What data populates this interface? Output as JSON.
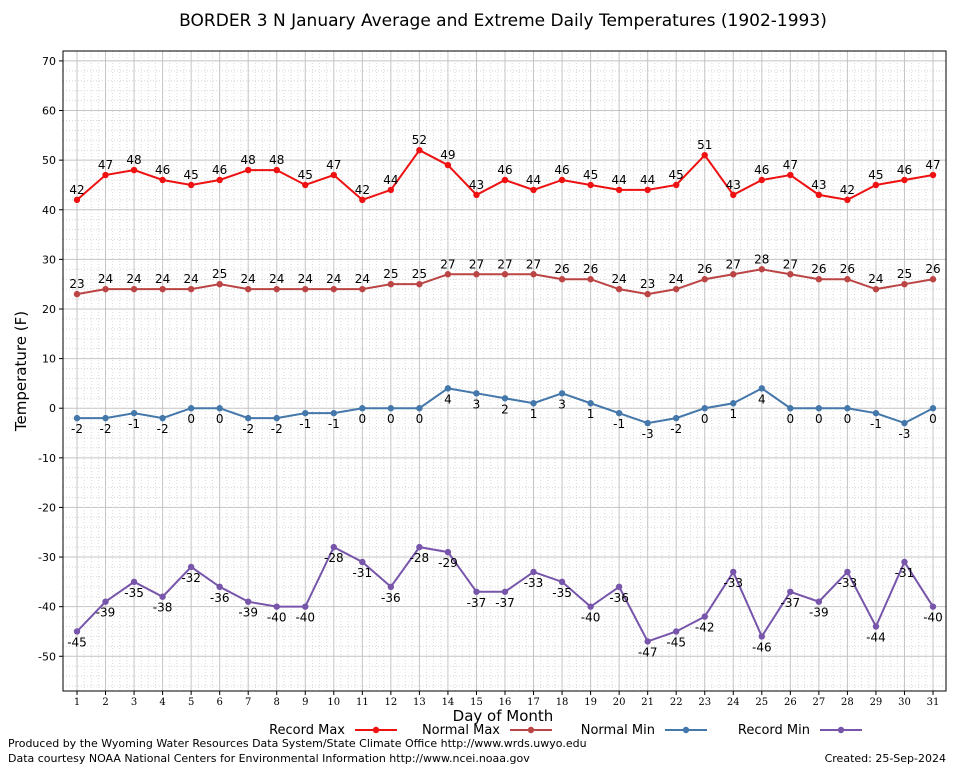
{
  "chart_data": {
    "type": "line",
    "title": "BORDER 3 N January Average and Extreme Daily Temperatures (1902-1993)",
    "xlabel": "Day of Month",
    "ylabel": "Temperature (F)",
    "ylim": [
      -57,
      72
    ],
    "yticks": [
      -50,
      -40,
      -30,
      -20,
      -10,
      0,
      10,
      20,
      30,
      40,
      50,
      60,
      70
    ],
    "x": [
      1,
      2,
      3,
      4,
      5,
      6,
      7,
      8,
      9,
      10,
      11,
      12,
      13,
      14,
      15,
      16,
      17,
      18,
      19,
      20,
      21,
      22,
      23,
      24,
      25,
      26,
      27,
      28,
      29,
      30,
      31
    ],
    "grid": true,
    "legend_placement": "bottom",
    "series": [
      {
        "name": "Record Max",
        "color": "#ee1111",
        "values": [
          42,
          47,
          48,
          46,
          45,
          46,
          48,
          48,
          45,
          47,
          42,
          44,
          52,
          49,
          43,
          46,
          44,
          46,
          45,
          44,
          44,
          45,
          51,
          43,
          46,
          47,
          43,
          42,
          45,
          46,
          47
        ]
      },
      {
        "name": "Normal Max",
        "color": "#bb4444",
        "values": [
          23,
          24,
          24,
          24,
          24,
          25,
          24,
          24,
          24,
          24,
          24,
          25,
          25,
          27,
          27,
          27,
          27,
          26,
          26,
          24,
          23,
          24,
          26,
          27,
          28,
          27,
          26,
          26,
          24,
          25,
          26
        ]
      },
      {
        "name": "Normal Min",
        "color": "#4477aa",
        "values": [
          -2,
          -2,
          -1,
          -2,
          0,
          0,
          -2,
          -2,
          -1,
          -1,
          0,
          0,
          0,
          4,
          3,
          2,
          1,
          3,
          1,
          -1,
          -3,
          -2,
          0,
          1,
          4,
          0,
          0,
          0,
          -1,
          -3,
          0
        ]
      },
      {
        "name": "Record Min",
        "color": "#7755aa",
        "values": [
          -45,
          -39,
          -35,
          -38,
          -32,
          -36,
          -39,
          -40,
          -40,
          -28,
          -31,
          -36,
          -28,
          -29,
          -37,
          -37,
          -33,
          -35,
          -40,
          -36,
          -47,
          -45,
          -42,
          -33,
          -46,
          -37,
          -39,
          -33,
          -44,
          -31,
          -40
        ]
      }
    ]
  },
  "footer": {
    "produced_by": "Produced by the Wyoming Water Resources Data System/State Climate Office http://www.wrds.uwyo.edu",
    "data_courtesy": "Data courtesy NOAA National Centers for Environmental Information http://www.ncei.noaa.gov",
    "created": "Created:  25-Sep-2024"
  }
}
